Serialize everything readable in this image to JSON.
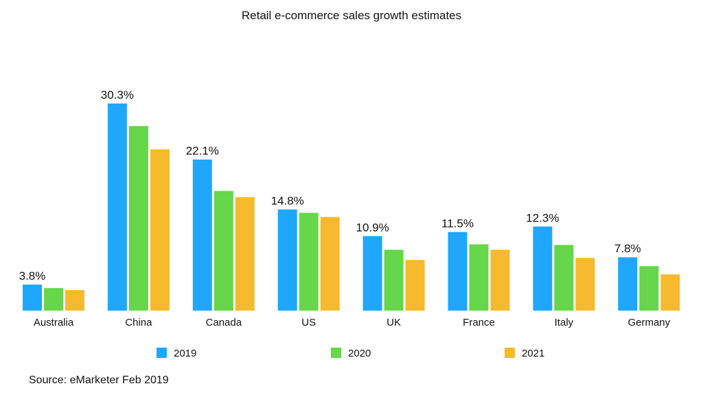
{
  "chart_data": {
    "type": "bar",
    "title": "Retail e-commerce sales growth estimates",
    "source": "Source: eMarketer Feb 2019",
    "xlabel": "",
    "ylabel": "",
    "ylim": [
      0,
      32
    ],
    "grid": false,
    "legend_position": "bottom",
    "categories": [
      "Australia",
      "China",
      "Canada",
      "US",
      "UK",
      "France",
      "Italy",
      "Germany"
    ],
    "series": [
      {
        "name": "2019",
        "color": "#1ea7fd",
        "values": [
          3.8,
          30.3,
          22.1,
          14.8,
          10.9,
          11.5,
          12.3,
          7.8
        ]
      },
      {
        "name": "2020",
        "color": "#66d64a",
        "values": [
          3.3,
          27.0,
          17.5,
          14.3,
          8.9,
          9.7,
          9.6,
          6.5
        ]
      },
      {
        "name": "2021",
        "color": "#f7b92e",
        "values": [
          3.0,
          23.6,
          16.6,
          13.7,
          7.4,
          8.9,
          7.7,
          5.3
        ]
      }
    ],
    "data_labels": [
      "3.8%",
      "30.3%",
      "22.1%",
      "14.8%",
      "10.9%",
      "11.5%",
      "12.3%",
      "7.8%"
    ]
  }
}
